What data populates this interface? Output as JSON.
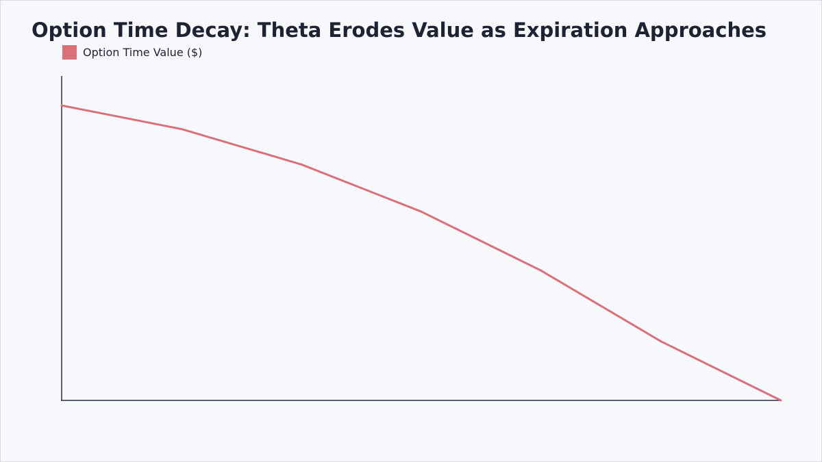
{
  "chart_data": {
    "type": "line",
    "title": "Option Time Decay: Theta Erodes Value as Expiration Approaches",
    "xlabel": "",
    "ylabel": "",
    "x": [
      0,
      1,
      2,
      3,
      4,
      5,
      6
    ],
    "series": [
      {
        "name": "Option Time Value ($)",
        "values": [
          10.0,
          9.2,
          8.0,
          6.4,
          4.4,
          2.0,
          0.0
        ],
        "color": "#d9707a"
      }
    ],
    "xlim": [
      0,
      6
    ],
    "ylim": [
      0,
      11
    ],
    "grid": false,
    "legend_position": "top-left"
  }
}
